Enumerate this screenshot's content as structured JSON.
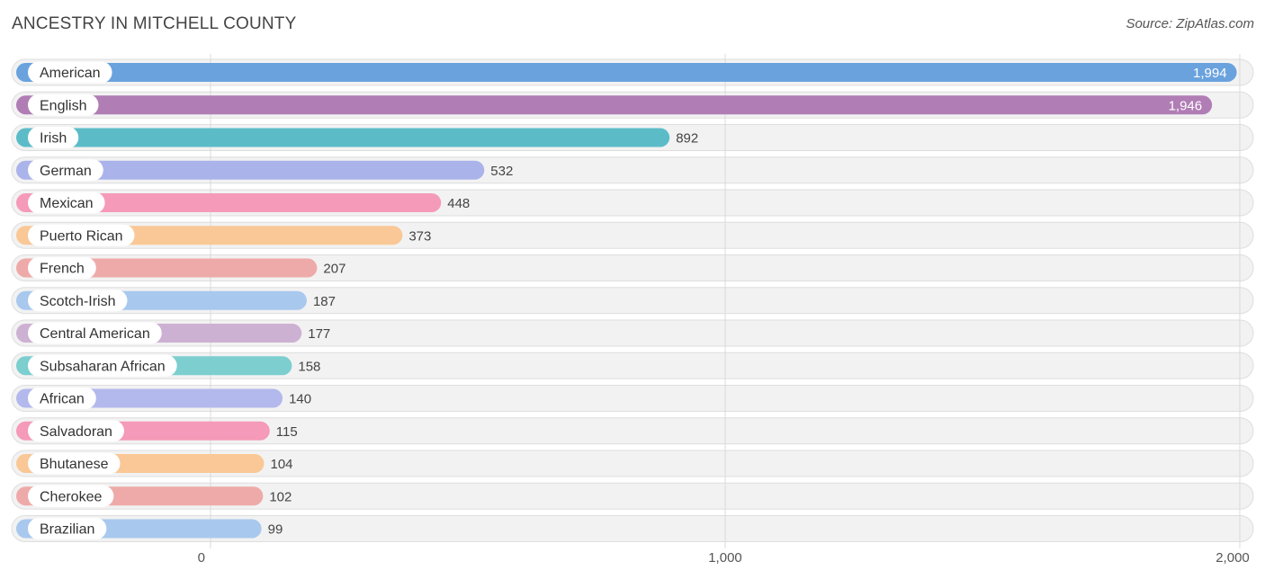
{
  "header": {
    "title": "ANCESTRY IN MITCHELL COUNTY",
    "source": "Source: ZipAtlas.com"
  },
  "chart_data": {
    "type": "bar",
    "orientation": "horizontal",
    "title": "ANCESTRY IN MITCHELL COUNTY",
    "categories": [
      "American",
      "English",
      "Irish",
      "German",
      "Mexican",
      "Puerto Rican",
      "French",
      "Scotch-Irish",
      "Central American",
      "Subsaharan African",
      "African",
      "Salvadoran",
      "Bhutanese",
      "Cherokee",
      "Brazilian"
    ],
    "values": [
      1994,
      1946,
      892,
      532,
      448,
      373,
      207,
      187,
      177,
      158,
      140,
      115,
      104,
      102,
      99
    ],
    "value_labels": [
      "1,994",
      "1,946",
      "892",
      "532",
      "448",
      "373",
      "207",
      "187",
      "177",
      "158",
      "140",
      "115",
      "104",
      "102",
      "99"
    ],
    "colors": [
      "#6aa2de",
      "#b07db5",
      "#5bbcc8",
      "#aab3ea",
      "#f59ab8",
      "#f9c896",
      "#eeaaa8",
      "#a8c8ee",
      "#cdb1d3",
      "#7ccecf",
      "#b3b9ec",
      "#f59ab8",
      "#f9c896",
      "#eeaaa8",
      "#a8c8ee"
    ],
    "xlim": [
      0,
      2000
    ],
    "xticks": [
      0,
      1000,
      2000
    ],
    "xtick_labels": [
      "0",
      "1,000",
      "2,000"
    ],
    "grid": true
  }
}
